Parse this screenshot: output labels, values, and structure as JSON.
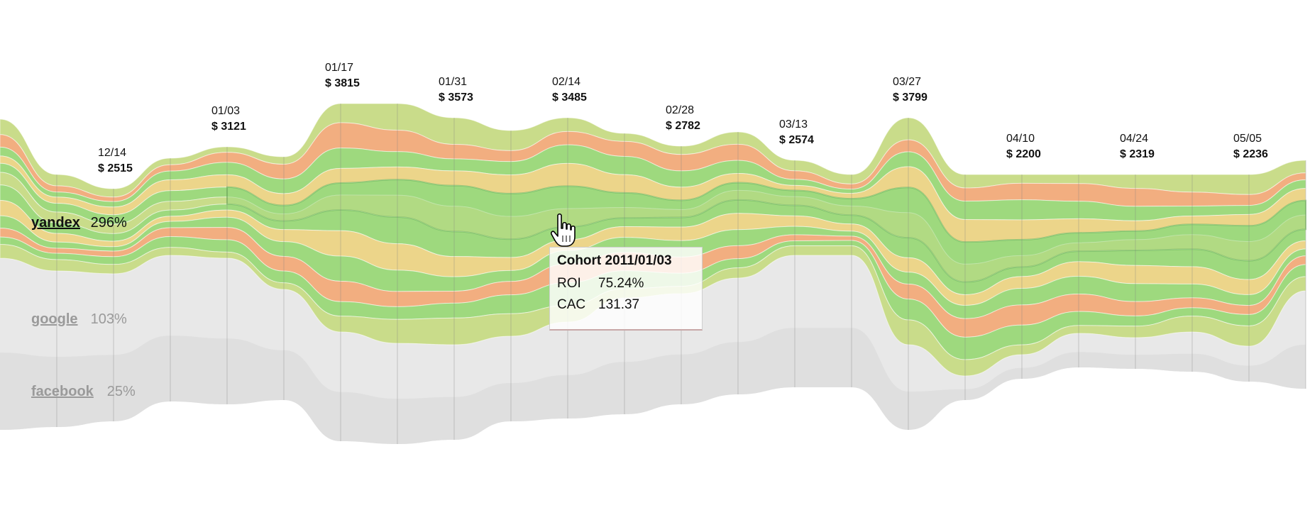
{
  "chart_data": {
    "type": "area",
    "periods": [
      {
        "date": "",
        "amount": ""
      },
      {
        "date": "",
        "amount": ""
      },
      {
        "date": "12/14",
        "amount": "$ 2515"
      },
      {
        "date": "",
        "amount": ""
      },
      {
        "date": "01/03",
        "amount": "$ 3121"
      },
      {
        "date": "",
        "amount": ""
      },
      {
        "date": "01/17",
        "amount": "$ 3815"
      },
      {
        "date": "",
        "amount": ""
      },
      {
        "date": "01/31",
        "amount": "$ 3573"
      },
      {
        "date": "",
        "amount": ""
      },
      {
        "date": "02/14",
        "amount": "$ 3485"
      },
      {
        "date": "",
        "amount": ""
      },
      {
        "date": "02/28",
        "amount": "$ 2782"
      },
      {
        "date": "",
        "amount": ""
      },
      {
        "date": "03/13",
        "amount": "$ 2574"
      },
      {
        "date": "",
        "amount": ""
      },
      {
        "date": "03/27",
        "amount": "$ 3799"
      },
      {
        "date": "",
        "amount": ""
      },
      {
        "date": "04/10",
        "amount": "$ 2200"
      },
      {
        "date": "",
        "amount": ""
      },
      {
        "date": "04/24",
        "amount": "$ 2319"
      },
      {
        "date": "",
        "amount": ""
      },
      {
        "date": "05/05",
        "amount": "$ 2236"
      },
      {
        "date": "",
        "amount": ""
      }
    ],
    "totals": [
      null,
      null,
      2515,
      null,
      3121,
      null,
      3815,
      null,
      3573,
      null,
      3485,
      null,
      2782,
      null,
      2574,
      null,
      3799,
      null,
      2200,
      null,
      2319,
      null,
      2236,
      null
    ],
    "series": [
      {
        "name": "yandex",
        "roi": "296%",
        "active": true
      },
      {
        "name": "google",
        "roi": "103%",
        "active": false
      },
      {
        "name": "facebook",
        "roi": "25%",
        "active": false
      }
    ]
  },
  "tooltip": {
    "title": "Cohort 2011/01/03",
    "rows": [
      {
        "key": "ROI",
        "value": "75.24%"
      },
      {
        "key": "CAC",
        "value": "131.37"
      }
    ]
  },
  "colors": {
    "green": "#9ed97e",
    "light_green": "#c9dc8a",
    "yellow": "#ecd58a",
    "orange": "#f2ae80",
    "highlight": "#5fb04a",
    "grey": "#e8e8e8",
    "dark_grey": "#d7d7d7",
    "gridline": "#7f7f7f"
  }
}
